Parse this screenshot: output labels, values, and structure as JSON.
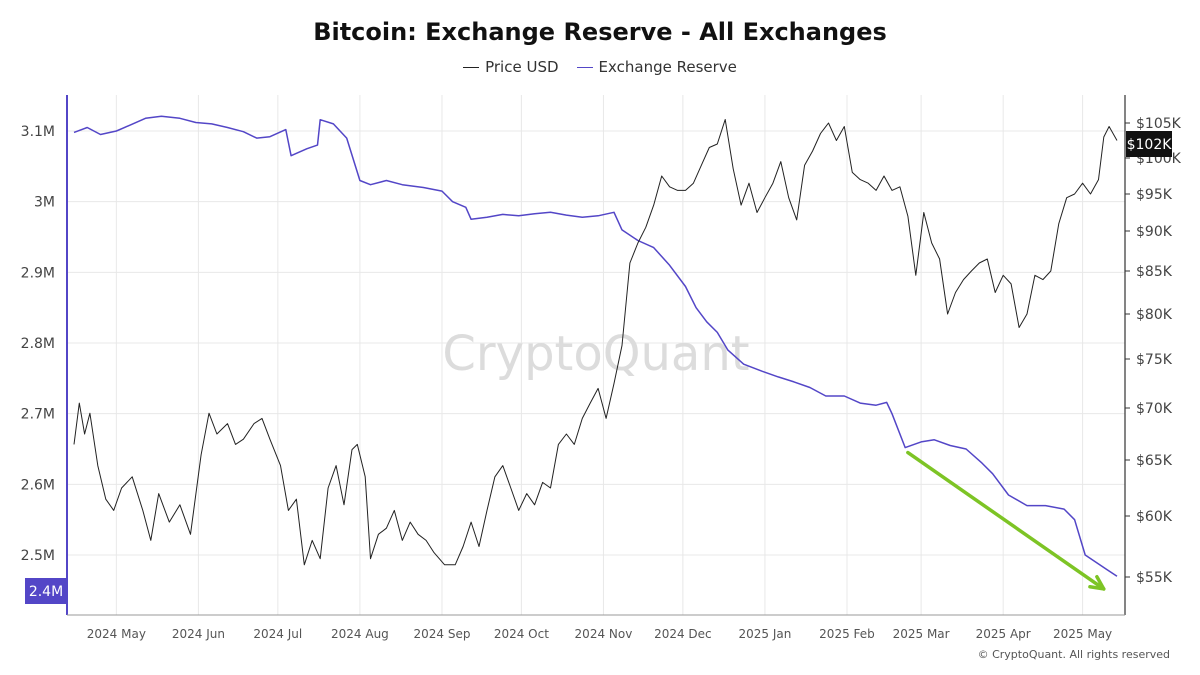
{
  "chart_data": {
    "type": "line",
    "title": "Bitcoin: Exchange Reserve - All Exchanges",
    "watermark": "CryptoQuant",
    "copyright": "© CryptoQuant. All rights reserved",
    "x_tick_labels": [
      "2024 May",
      "2024 Jun",
      "2024 Jul",
      "2024 Aug",
      "2024 Sep",
      "2024 Oct",
      "2024 Nov",
      "2024 Dec",
      "2025 Jan",
      "2025 Feb",
      "2025 Mar",
      "2025 Apr",
      "2025 May"
    ],
    "x_range": [
      "2024-04-15",
      "2025-05-14"
    ],
    "y_left": {
      "label": "Exchange Reserve",
      "range": [
        2.37,
        3.26
      ],
      "unit": "BTC",
      "ticks": [
        "3.1M",
        "3M",
        "2.9M",
        "2.8M",
        "2.7M",
        "2.6M",
        "2.5M"
      ],
      "current_label": "2.4M"
    },
    "y_right": {
      "label": "Price USD",
      "range": [
        52000,
        108000
      ],
      "unit": "USD",
      "ticks": [
        "$105K",
        "$100K",
        "$95K",
        "$90K",
        "$85K",
        "$80K",
        "$75K",
        "$70K",
        "$65K",
        "$60K",
        "$55K"
      ],
      "current_label": "$102K"
    },
    "grid": true,
    "legend_position": "top-center",
    "colors": {
      "reserve": "#5346c7",
      "price": "#222222",
      "arrow": "#7dc425",
      "grid": "#e8e8e8",
      "watermark": "#d9d9d9"
    },
    "series": [
      {
        "name": "Exchange Reserve",
        "axis": "left",
        "color": "#5346c7",
        "points": [
          [
            "2024-04-15",
            3.098
          ],
          [
            "2024-04-20",
            3.105
          ],
          [
            "2024-04-25",
            3.095
          ],
          [
            "2024-05-01",
            3.1
          ],
          [
            "2024-05-06",
            3.108
          ],
          [
            "2024-05-12",
            3.118
          ],
          [
            "2024-05-18",
            3.121
          ],
          [
            "2024-05-25",
            3.118
          ],
          [
            "2024-05-31",
            3.112
          ],
          [
            "2024-06-06",
            3.11
          ],
          [
            "2024-06-12",
            3.105
          ],
          [
            "2024-06-18",
            3.099
          ],
          [
            "2024-06-23",
            3.09
          ],
          [
            "2024-06-28",
            3.092
          ],
          [
            "2024-07-04",
            3.102
          ],
          [
            "2024-07-06",
            3.065
          ],
          [
            "2024-07-12",
            3.075
          ],
          [
            "2024-07-16",
            3.08
          ],
          [
            "2024-07-17",
            3.116
          ],
          [
            "2024-07-22",
            3.11
          ],
          [
            "2024-07-27",
            3.09
          ],
          [
            "2024-08-01",
            3.03
          ],
          [
            "2024-08-05",
            3.024
          ],
          [
            "2024-08-11",
            3.03
          ],
          [
            "2024-08-17",
            3.024
          ],
          [
            "2024-08-25",
            3.02
          ],
          [
            "2024-09-01",
            3.015
          ],
          [
            "2024-09-05",
            3.0
          ],
          [
            "2024-09-10",
            2.992
          ],
          [
            "2024-09-12",
            2.975
          ],
          [
            "2024-09-18",
            2.978
          ],
          [
            "2024-09-24",
            2.982
          ],
          [
            "2024-09-30",
            2.98
          ],
          [
            "2024-10-06",
            2.983
          ],
          [
            "2024-10-12",
            2.985
          ],
          [
            "2024-10-18",
            2.981
          ],
          [
            "2024-10-24",
            2.978
          ],
          [
            "2024-10-30",
            2.98
          ],
          [
            "2024-11-05",
            2.985
          ],
          [
            "2024-11-08",
            2.96
          ],
          [
            "2024-11-14",
            2.945
          ],
          [
            "2024-11-20",
            2.935
          ],
          [
            "2024-11-26",
            2.91
          ],
          [
            "2024-12-02",
            2.88
          ],
          [
            "2024-12-06",
            2.85
          ],
          [
            "2024-12-10",
            2.83
          ],
          [
            "2024-12-14",
            2.815
          ],
          [
            "2024-12-18",
            2.79
          ],
          [
            "2024-12-24",
            2.77
          ],
          [
            "2024-12-31",
            2.76
          ],
          [
            "2025-01-06",
            2.752
          ],
          [
            "2025-01-12",
            2.745
          ],
          [
            "2025-01-18",
            2.737
          ],
          [
            "2025-01-24",
            2.725
          ],
          [
            "2025-01-31",
            2.725
          ],
          [
            "2025-02-06",
            2.715
          ],
          [
            "2025-02-12",
            2.712
          ],
          [
            "2025-02-16",
            2.716
          ],
          [
            "2025-02-18",
            2.7
          ],
          [
            "2025-02-23",
            2.652
          ],
          [
            "2025-03-01",
            2.66
          ],
          [
            "2025-03-06",
            2.663
          ],
          [
            "2025-03-12",
            2.655
          ],
          [
            "2025-03-18",
            2.65
          ],
          [
            "2025-03-24",
            2.63
          ],
          [
            "2025-03-28",
            2.615
          ],
          [
            "2025-04-03",
            2.585
          ],
          [
            "2025-04-10",
            2.57
          ],
          [
            "2025-04-17",
            2.57
          ],
          [
            "2025-04-24",
            2.565
          ],
          [
            "2025-04-28",
            2.55
          ],
          [
            "2025-05-02",
            2.5
          ],
          [
            "2025-05-06",
            2.49
          ],
          [
            "2025-05-10",
            2.48
          ],
          [
            "2025-05-14",
            2.47
          ]
        ]
      },
      {
        "name": "Price USD",
        "axis": "right",
        "color": "#222222",
        "points": [
          [
            "2024-04-15",
            66500
          ],
          [
            "2024-04-17",
            70500
          ],
          [
            "2024-04-19",
            67500
          ],
          [
            "2024-04-21",
            69500
          ],
          [
            "2024-04-24",
            64500
          ],
          [
            "2024-04-27",
            61500
          ],
          [
            "2024-04-30",
            60500
          ],
          [
            "2024-05-03",
            62500
          ],
          [
            "2024-05-07",
            63500
          ],
          [
            "2024-05-11",
            60500
          ],
          [
            "2024-05-14",
            58000
          ],
          [
            "2024-05-17",
            62000
          ],
          [
            "2024-05-21",
            59500
          ],
          [
            "2024-05-25",
            61000
          ],
          [
            "2024-05-29",
            58500
          ],
          [
            "2024-06-02",
            65500
          ],
          [
            "2024-06-05",
            69500
          ],
          [
            "2024-06-08",
            67500
          ],
          [
            "2024-06-12",
            68500
          ],
          [
            "2024-06-15",
            66500
          ],
          [
            "2024-06-18",
            67000
          ],
          [
            "2024-06-22",
            68500
          ],
          [
            "2024-06-25",
            69000
          ],
          [
            "2024-06-28",
            67000
          ],
          [
            "2024-07-02",
            64500
          ],
          [
            "2024-07-05",
            60500
          ],
          [
            "2024-07-08",
            61500
          ],
          [
            "2024-07-11",
            56000
          ],
          [
            "2024-07-14",
            58000
          ],
          [
            "2024-07-17",
            56500
          ],
          [
            "2024-07-20",
            62500
          ],
          [
            "2024-07-23",
            64500
          ],
          [
            "2024-07-26",
            61000
          ],
          [
            "2024-07-29",
            66000
          ],
          [
            "2024-07-31",
            66500
          ],
          [
            "2024-08-03",
            63500
          ],
          [
            "2024-08-05",
            53500
          ],
          [
            "2024-08-08",
            58500
          ],
          [
            "2024-08-11",
            59000
          ],
          [
            "2024-08-14",
            60500
          ],
          [
            "2024-08-17",
            58000
          ],
          [
            "2024-08-20",
            59500
          ],
          [
            "2024-08-23",
            58500
          ],
          [
            "2024-08-26",
            58000
          ],
          [
            "2024-08-29",
            57000
          ],
          [
            "2024-09-02",
            54000
          ],
          [
            "2024-09-06",
            56000
          ],
          [
            "2024-09-09",
            57500
          ],
          [
            "2024-09-12",
            59500
          ],
          [
            "2024-09-15",
            57500
          ],
          [
            "2024-09-18",
            60500
          ],
          [
            "2024-09-21",
            63500
          ],
          [
            "2024-09-24",
            64500
          ],
          [
            "2024-09-27",
            62500
          ],
          [
            "2024-09-30",
            60500
          ],
          [
            "2024-10-03",
            62000
          ],
          [
            "2024-10-06",
            61000
          ],
          [
            "2024-10-09",
            63000
          ],
          [
            "2024-10-12",
            62500
          ],
          [
            "2024-10-15",
            66500
          ],
          [
            "2024-10-18",
            67500
          ],
          [
            "2024-10-21",
            66500
          ],
          [
            "2024-10-24",
            69000
          ],
          [
            "2024-10-27",
            70500
          ],
          [
            "2024-10-30",
            72000
          ],
          [
            "2024-11-02",
            69000
          ],
          [
            "2024-11-05",
            72500
          ],
          [
            "2024-11-08",
            76500
          ],
          [
            "2024-11-11",
            86000
          ],
          [
            "2024-11-14",
            88500
          ],
          [
            "2024-11-17",
            90500
          ],
          [
            "2024-11-20",
            93500
          ],
          [
            "2024-11-23",
            97500
          ],
          [
            "2024-11-26",
            96000
          ],
          [
            "2024-11-29",
            95500
          ],
          [
            "2024-12-02",
            95500
          ],
          [
            "2024-12-05",
            96500
          ],
          [
            "2024-12-08",
            99000
          ],
          [
            "2024-12-11",
            101500
          ],
          [
            "2024-12-14",
            102000
          ],
          [
            "2024-12-17",
            105500
          ],
          [
            "2024-12-20",
            98500
          ],
          [
            "2024-12-23",
            93500
          ],
          [
            "2024-12-26",
            96500
          ],
          [
            "2024-12-29",
            92500
          ],
          [
            "2025-01-01",
            94500
          ],
          [
            "2025-01-04",
            96500
          ],
          [
            "2025-01-07",
            99500
          ],
          [
            "2025-01-10",
            94500
          ],
          [
            "2025-01-13",
            91500
          ],
          [
            "2025-01-16",
            99000
          ],
          [
            "2025-01-19",
            101000
          ],
          [
            "2025-01-22",
            103500
          ],
          [
            "2025-01-25",
            105000
          ],
          [
            "2025-01-28",
            102500
          ],
          [
            "2025-01-31",
            104500
          ],
          [
            "2025-02-03",
            98000
          ],
          [
            "2025-02-06",
            97000
          ],
          [
            "2025-02-09",
            96500
          ],
          [
            "2025-02-12",
            95500
          ],
          [
            "2025-02-15",
            97500
          ],
          [
            "2025-02-18",
            95500
          ],
          [
            "2025-02-21",
            96000
          ],
          [
            "2025-02-24",
            92000
          ],
          [
            "2025-02-27",
            84500
          ],
          [
            "2025-03-02",
            92500
          ],
          [
            "2025-03-05",
            88500
          ],
          [
            "2025-03-08",
            86500
          ],
          [
            "2025-03-11",
            80000
          ],
          [
            "2025-03-14",
            82500
          ],
          [
            "2025-03-17",
            84000
          ],
          [
            "2025-03-20",
            85000
          ],
          [
            "2025-03-23",
            86000
          ],
          [
            "2025-03-26",
            86500
          ],
          [
            "2025-03-29",
            82500
          ],
          [
            "2025-04-01",
            84500
          ],
          [
            "2025-04-04",
            83500
          ],
          [
            "2025-04-07",
            78500
          ],
          [
            "2025-04-10",
            80000
          ],
          [
            "2025-04-13",
            84500
          ],
          [
            "2025-04-16",
            84000
          ],
          [
            "2025-04-19",
            85000
          ],
          [
            "2025-04-22",
            91000
          ],
          [
            "2025-04-25",
            94500
          ],
          [
            "2025-04-28",
            95000
          ],
          [
            "2025-05-01",
            96500
          ],
          [
            "2025-05-04",
            95000
          ],
          [
            "2025-05-07",
            97000
          ],
          [
            "2025-05-09",
            103000
          ],
          [
            "2025-05-11",
            104500
          ],
          [
            "2025-05-14",
            102500
          ]
        ]
      }
    ],
    "annotations": [
      {
        "type": "arrow",
        "color": "#7dc425",
        "from": [
          "2025-02-24",
          2.645
        ],
        "to": [
          "2025-05-09",
          2.452
        ]
      }
    ]
  }
}
